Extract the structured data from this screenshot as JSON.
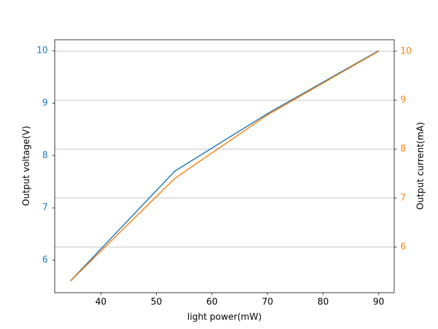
{
  "chart_data": {
    "type": "line",
    "xlabel": "light power(mW)",
    "ylabel": "Output voltage(V)",
    "y2label": "Output current(mA)",
    "x": [
      34.5,
      53.3,
      70,
      90
    ],
    "series": [
      {
        "color": "#1f77b4",
        "values": [
          5.6,
          7.7,
          8.8,
          10
        ],
        "axis": "y"
      },
      {
        "color": "#ff7f0e",
        "values": [
          5.3,
          7.4,
          8.7,
          10
        ],
        "axis": "y2"
      }
    ],
    "xlim": [
      31.7,
      92.8
    ],
    "xticks": [
      40,
      50,
      60,
      70,
      80,
      90
    ],
    "ylim": [
      5.38,
      10.21
    ],
    "yticks": [
      6,
      7,
      8,
      9,
      10
    ],
    "y2lim": [
      5.065,
      10.235
    ],
    "y2ticks": [
      6,
      7,
      8,
      9,
      10
    ],
    "grid": "y2"
  }
}
